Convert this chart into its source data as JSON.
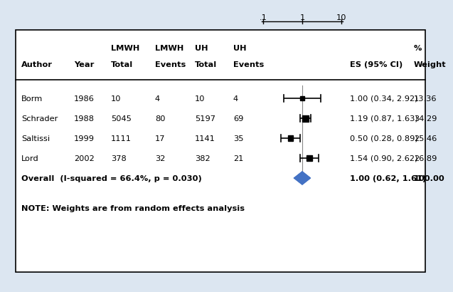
{
  "studies": [
    {
      "author": "Borm",
      "year": "1986",
      "lmwh_total": "10",
      "lmwh_events": "4",
      "uh_total": "10",
      "uh_events": "4",
      "es": 1.0,
      "ci_lo": 0.34,
      "ci_hi": 2.92,
      "weight": "13.36"
    },
    {
      "author": "Schrader",
      "year": "1988",
      "lmwh_total": "5045",
      "lmwh_events": "80",
      "uh_total": "5197",
      "uh_events": "69",
      "es": 1.19,
      "ci_lo": 0.87,
      "ci_hi": 1.63,
      "weight": "34.29"
    },
    {
      "author": "Saltissi",
      "year": "1999",
      "lmwh_total": "1111",
      "lmwh_events": "17",
      "uh_total": "1141",
      "uh_events": "35",
      "es": 0.5,
      "ci_lo": 0.28,
      "ci_hi": 0.89,
      "weight": "25.46"
    },
    {
      "author": "Lord",
      "year": "2002",
      "lmwh_total": "378",
      "lmwh_events": "32",
      "uh_total": "382",
      "uh_events": "21",
      "es": 1.54,
      "ci_lo": 0.9,
      "ci_hi": 2.62,
      "weight": "26.89"
    }
  ],
  "overall": {
    "es": 1.0,
    "ci_lo": 0.62,
    "ci_hi": 1.61,
    "weight": "100.00",
    "label": "Overall  (I-squared = 66.4%, p = 0.030)"
  },
  "note": "NOTE: Weights are from random effects analysis",
  "bg_color": "#dce6f1",
  "diamond_color": "#4472c4",
  "ref_line_color": "#808080",
  "axis_min": 0.1,
  "axis_max": 10,
  "axis_ticks": [
    0.1,
    1,
    10
  ],
  "axis_tick_labels": [
    ".1",
    "1",
    "10"
  ],
  "study_weights_num": [
    13.36,
    34.29,
    25.46,
    26.89
  ]
}
